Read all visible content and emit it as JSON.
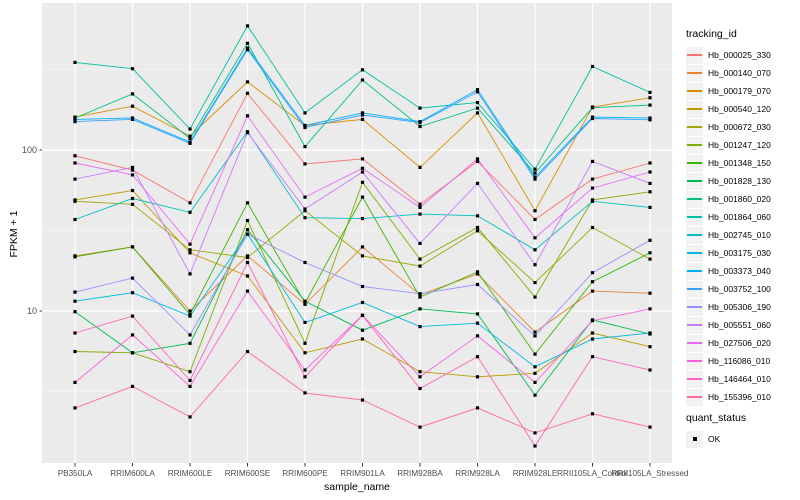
{
  "figure": {
    "legend": {
      "tracking_title": "tracking_id",
      "quant_title": "quant_status",
      "quant_items": [
        {
          "label": "OK",
          "marker": "black-square"
        }
      ]
    },
    "colors": {
      "panel_bg": "#EBEBEB",
      "grid_major": "#FFFFFF",
      "grid_minor": "#F7F7F7",
      "tick_text": "#4D4D4D",
      "tick_mark": "#333333",
      "point": "#000000"
    }
  },
  "chart_data": {
    "type": "line",
    "title": "",
    "xlabel": "sample_name",
    "ylabel": "FPKM + 1",
    "y_scale": "log10",
    "ylim": [
      1.1,
      820
    ],
    "y_major_ticks": [
      10,
      100
    ],
    "y_major_tick_labels": [
      "10",
      "100"
    ],
    "y_minor_ticks": [
      3.1623,
      31.623,
      316.23
    ],
    "grid": true,
    "legend_position": "right",
    "point_marker": "black-square",
    "categories": [
      "PB350LA",
      "RRIM600LA",
      "RRIM600LE",
      "RRIM600SE",
      "RRIM600PE",
      "RRIM901LA",
      "RRIM928BA",
      "RRIM928LA",
      "RRIM928LE",
      "RRII105LA_Control",
      "RRII105LA_Stressed"
    ],
    "series": [
      {
        "name": "Hb_000025_330",
        "color": "#F8766D",
        "values": [
          92,
          75,
          47,
          225,
          82,
          88,
          46,
          85,
          37,
          66,
          83
        ]
      },
      {
        "name": "Hb_000140_070",
        "color": "#EA8331",
        "values": [
          22,
          25,
          10,
          22,
          11,
          25,
          12.6,
          17,
          7.4,
          13.3,
          12.9
        ]
      },
      {
        "name": "Hb_000179_070",
        "color": "#D89000",
        "values": [
          160,
          187,
          122,
          265,
          142,
          155,
          78,
          170,
          42,
          185,
          211
        ]
      },
      {
        "name": "Hb_000540_120",
        "color": "#C09B00",
        "values": [
          49,
          56,
          23,
          16.5,
          5.5,
          6.7,
          4.2,
          3.9,
          4.1,
          7.3,
          6
        ]
      },
      {
        "name": "Hb_000672_030",
        "color": "#A3A500",
        "values": [
          48,
          46,
          24,
          21.5,
          42,
          22,
          19,
          31.5,
          15,
          33,
          21
        ]
      },
      {
        "name": "Hb_001247_120",
        "color": "#7CAE00",
        "values": [
          5.6,
          5.5,
          4.2,
          36.5,
          6.3,
          63,
          21,
          33,
          12.2,
          49,
          55
        ]
      },
      {
        "name": "Hb_001348_150",
        "color": "#39B600",
        "values": [
          21.7,
          25,
          9.5,
          47,
          11.2,
          51,
          12.2,
          17.5,
          5.4,
          15.2,
          23
        ]
      },
      {
        "name": "Hb_001828_130",
        "color": "#00BB4E",
        "values": [
          9.9,
          5.5,
          6.3,
          32,
          11.5,
          7.6,
          10.3,
          9.6,
          3,
          8.8,
          7.2
        ]
      },
      {
        "name": "Hb_001860_020",
        "color": "#00BF7D",
        "values": [
          158,
          223,
          118,
          460,
          105,
          272,
          140,
          182,
          72,
          183,
          190
        ]
      },
      {
        "name": "Hb_001864_060",
        "color": "#00C1A3",
        "values": [
          350,
          320,
          135,
          590,
          170,
          315,
          182,
          197,
          76,
          330,
          228
        ]
      },
      {
        "name": "Hb_002745_010",
        "color": "#00BFC4",
        "values": [
          37,
          50,
          41,
          130,
          38,
          37.5,
          40,
          39,
          24,
          48,
          44
        ]
      },
      {
        "name": "Hb_003175_030",
        "color": "#00BAE0",
        "values": [
          11.5,
          13,
          9.3,
          30,
          8.5,
          11.3,
          8,
          8.4,
          4.5,
          6.7,
          7.3
        ]
      },
      {
        "name": "Hb_003373_040",
        "color": "#00B0F6",
        "values": [
          155,
          158,
          112,
          430,
          142,
          170,
          150,
          237,
          68,
          160,
          158
        ]
      },
      {
        "name": "Hb_003752_100",
        "color": "#35A2FF",
        "values": [
          150,
          155,
          110,
          420,
          138,
          165,
          148,
          230,
          66,
          157,
          154
        ]
      },
      {
        "name": "Hb_005306_190",
        "color": "#9590FF",
        "values": [
          13.1,
          16,
          7.1,
          30,
          20,
          14.2,
          12.8,
          14.6,
          7,
          17.3,
          27.5
        ]
      },
      {
        "name": "Hb_005551_060",
        "color": "#C77CFF",
        "values": [
          66,
          78,
          17,
          128,
          43,
          73,
          26.3,
          62,
          19.4,
          85,
          62
        ]
      },
      {
        "name": "Hb_027506_020",
        "color": "#E76BF3",
        "values": [
          83,
          70,
          26,
          163,
          51,
          77,
          44,
          88,
          28.5,
          58,
          73
        ]
      },
      {
        "name": "Hb_116086_010",
        "color": "#FA62DB",
        "values": [
          3.6,
          7.1,
          3.4,
          13.3,
          4.3,
          9.4,
          3.9,
          7,
          3.6,
          8.7,
          10.3
        ]
      },
      {
        "name": "Hb_146464_010",
        "color": "#FF62BC",
        "values": [
          7.3,
          9.3,
          3.7,
          20,
          3.9,
          9.4,
          3.3,
          5.2,
          1.45,
          5.2,
          4.3
        ]
      },
      {
        "name": "Hb_155396_010",
        "color": "#FF6A98",
        "values": [
          2.5,
          3.4,
          2.2,
          5.6,
          3.1,
          2.8,
          1.9,
          2.5,
          1.75,
          2.3,
          1.9
        ]
      }
    ]
  }
}
